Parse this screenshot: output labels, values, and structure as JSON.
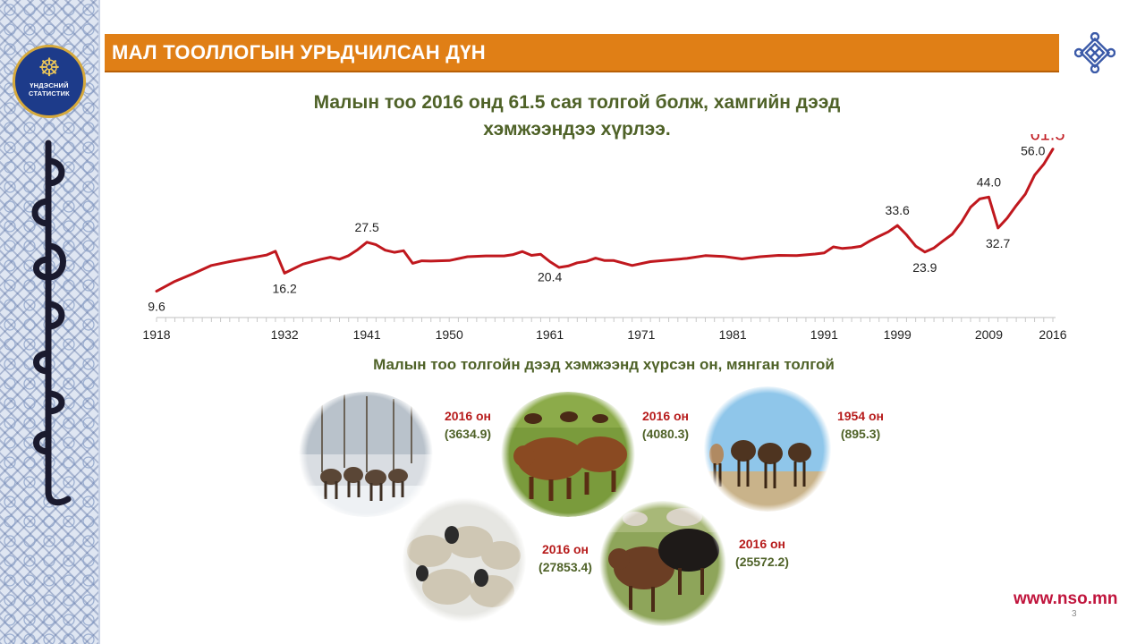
{
  "header": {
    "title": "МАЛ ТООЛЛОГЫН УРЬДЧИЛСАН ДҮН"
  },
  "logo": {
    "line1": "ҮНДЭСНИЙ",
    "line2": "СТАТИСТИК"
  },
  "headline": {
    "line1": "Малын тоо 2016 онд 61.5 сая толгой болж, хамгийн дээд",
    "line2": "хэмжээндээ хүрлээ."
  },
  "subheadline": "Малын тоо толгойн дээд хэмжээнд хүрсэн он, мянган толгой",
  "chart_data": {
    "type": "line",
    "title": "",
    "xlabel": "",
    "ylabel": "",
    "series": [
      {
        "color": "#c0181e",
        "x": [
          1918,
          1920,
          1922,
          1924,
          1926,
          1928,
          1930,
          1931,
          1932,
          1934,
          1936,
          1937,
          1938,
          1939,
          1940,
          1941,
          1942,
          1943,
          1944,
          1945,
          1946,
          1947,
          1948,
          1950,
          1952,
          1954,
          1956,
          1957,
          1958,
          1959,
          1960,
          1961,
          1962,
          1963,
          1964,
          1965,
          1966,
          1967,
          1968,
          1970,
          1972,
          1974,
          1976,
          1978,
          1980,
          1982,
          1984,
          1986,
          1988,
          1990,
          1991,
          1992,
          1993,
          1994,
          1995,
          1996,
          1997,
          1998,
          1999,
          2000,
          2001,
          2002,
          2003,
          2004,
          2005,
          2006,
          2007,
          2008,
          2009,
          2010,
          2011,
          2012,
          2013,
          2014,
          2015,
          2016
        ],
        "y": [
          9.6,
          13.2,
          16.0,
          19.0,
          20.4,
          21.6,
          22.8,
          24.2,
          16.2,
          19.5,
          21.3,
          22.0,
          21.3,
          22.6,
          24.8,
          27.5,
          26.6,
          24.6,
          23.8,
          24.4,
          19.8,
          20.7,
          20.6,
          20.8,
          22.2,
          22.5,
          22.5,
          23.0,
          24.1,
          22.7,
          23.1,
          20.4,
          18.3,
          18.8,
          20.0,
          20.5,
          21.7,
          20.8,
          20.8,
          19.0,
          20.4,
          21.0,
          21.6,
          22.6,
          22.3,
          21.4,
          22.2,
          22.7,
          22.6,
          23.2,
          23.6,
          25.8,
          25.2,
          25.5,
          26.0,
          28.0,
          29.7,
          31.3,
          33.6,
          30.2,
          26.1,
          23.9,
          25.4,
          28.0,
          30.4,
          34.8,
          40.3,
          43.3,
          44.0,
          32.7,
          36.3,
          40.9,
          45.1,
          52.0,
          56.0,
          61.5
        ]
      }
    ],
    "x_ticks": [
      1918,
      1932,
      1941,
      1950,
      1961,
      1971,
      1981,
      1991,
      1999,
      2009,
      2016
    ],
    "point_labels": [
      {
        "x": 1918,
        "y": 9.6,
        "text": "9.6",
        "color": "#222222",
        "pos": "below"
      },
      {
        "x": 1932,
        "y": 16.2,
        "text": "16.2",
        "color": "#222222",
        "pos": "below"
      },
      {
        "x": 1941,
        "y": 27.5,
        "text": "27.5",
        "color": "#222222",
        "pos": "above"
      },
      {
        "x": 1961,
        "y": 20.4,
        "text": "20.4",
        "color": "#222222",
        "pos": "below"
      },
      {
        "x": 1999,
        "y": 33.6,
        "text": "33.6",
        "color": "#222222",
        "pos": "above"
      },
      {
        "x": 2002,
        "y": 23.9,
        "text": "23.9",
        "color": "#222222",
        "pos": "below"
      },
      {
        "x": 2009,
        "y": 44.0,
        "text": "44.0",
        "color": "#222222",
        "pos": "above"
      },
      {
        "x": 2010,
        "y": 32.7,
        "text": "32.7",
        "color": "#222222",
        "pos": "below"
      },
      {
        "x": 2015,
        "y": 56.0,
        "text": "56.0",
        "color": "#222222",
        "pos": "aboveleft"
      },
      {
        "x": 2016,
        "y": 61.5,
        "text": "61.5",
        "color": "#c0181e",
        "pos": "big"
      }
    ],
    "ylim": [
      0,
      65
    ],
    "xlim": [
      1918,
      2016
    ],
    "grid": false
  },
  "animals": [
    {
      "name": "horses",
      "year": "2016 он",
      "value": "(3634.9)"
    },
    {
      "name": "cattle",
      "year": "2016 он",
      "value": "(4080.3)"
    },
    {
      "name": "camels",
      "year": "1954 он",
      "value": "(895.3)"
    },
    {
      "name": "sheep",
      "year": "2016 он",
      "value": "(27853.4)"
    },
    {
      "name": "goats",
      "year": "2016 он",
      "value": "(25572.2)"
    }
  ],
  "footer": {
    "url": "www.nso.mn",
    "page": "3"
  }
}
